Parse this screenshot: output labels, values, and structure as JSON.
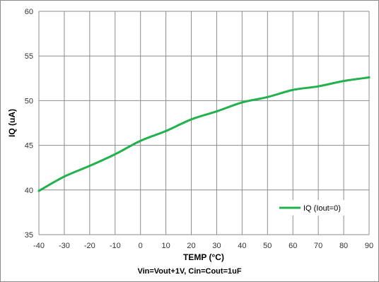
{
  "chart_data": {
    "type": "line",
    "xlabel": "TEMP (°C)",
    "ylabel": "IQ (uA)",
    "caption": "Vin=Vout+1V, Cin=Cout=1uF",
    "xlim": [
      -40,
      90
    ],
    "ylim": [
      35,
      60
    ],
    "x_ticks": [
      -40,
      -30,
      -20,
      -10,
      0,
      10,
      20,
      30,
      40,
      50,
      60,
      70,
      80,
      90
    ],
    "y_ticks": [
      35,
      40,
      45,
      50,
      55,
      60
    ],
    "grid": true,
    "legend_position": "bottom-right",
    "series": [
      {
        "name": "IQ (Iout=0)",
        "color": "#22b14c",
        "x": [
          -40,
          -30,
          -20,
          -10,
          0,
          10,
          20,
          30,
          40,
          50,
          60,
          70,
          80,
          90
        ],
        "y": [
          39.9,
          41.5,
          42.7,
          44.0,
          45.5,
          46.6,
          47.9,
          48.8,
          49.8,
          50.4,
          51.2,
          51.6,
          52.2,
          52.6
        ]
      }
    ]
  }
}
